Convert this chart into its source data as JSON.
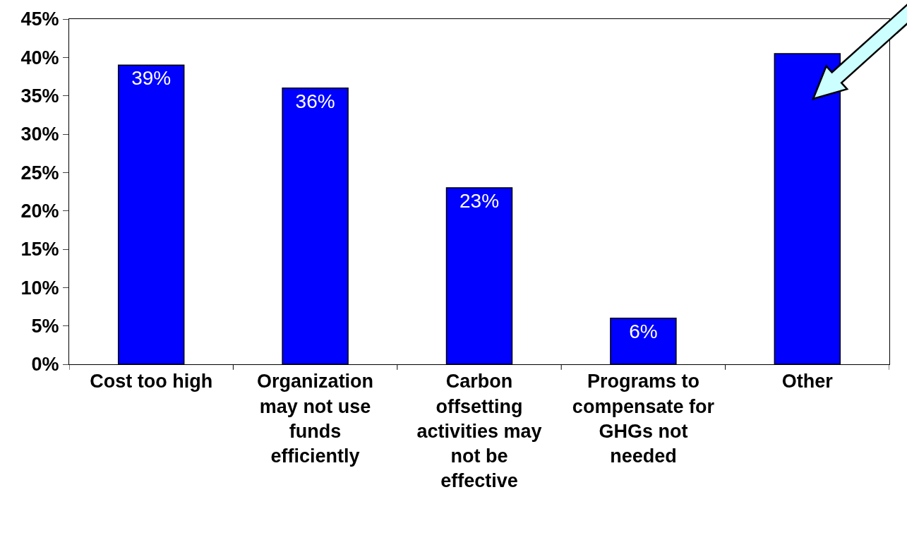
{
  "chart_data": {
    "type": "bar",
    "categories": [
      "Cost too high",
      "Organization may not use funds efficiently",
      "Carbon offsetting activities may not be effective",
      "Programs to compensate for GHGs not needed",
      "Other"
    ],
    "values": [
      39,
      36,
      23,
      6,
      40.5
    ],
    "value_labels": [
      "39%",
      "36%",
      "23%",
      "6%",
      null
    ],
    "color": "#0000ff",
    "ylim": [
      0,
      45
    ],
    "yticks": [
      {
        "value": 0,
        "label": "0%"
      },
      {
        "value": 5,
        "label": "5%"
      },
      {
        "value": 10,
        "label": "10%"
      },
      {
        "value": 15,
        "label": "15%"
      },
      {
        "value": 20,
        "label": "20%"
      },
      {
        "value": 25,
        "label": "25%"
      },
      {
        "value": 30,
        "label": "30%"
      },
      {
        "value": 35,
        "label": "35%"
      },
      {
        "value": 40,
        "label": "40%"
      },
      {
        "value": 45,
        "label": "45%"
      }
    ],
    "legend": false
  }
}
